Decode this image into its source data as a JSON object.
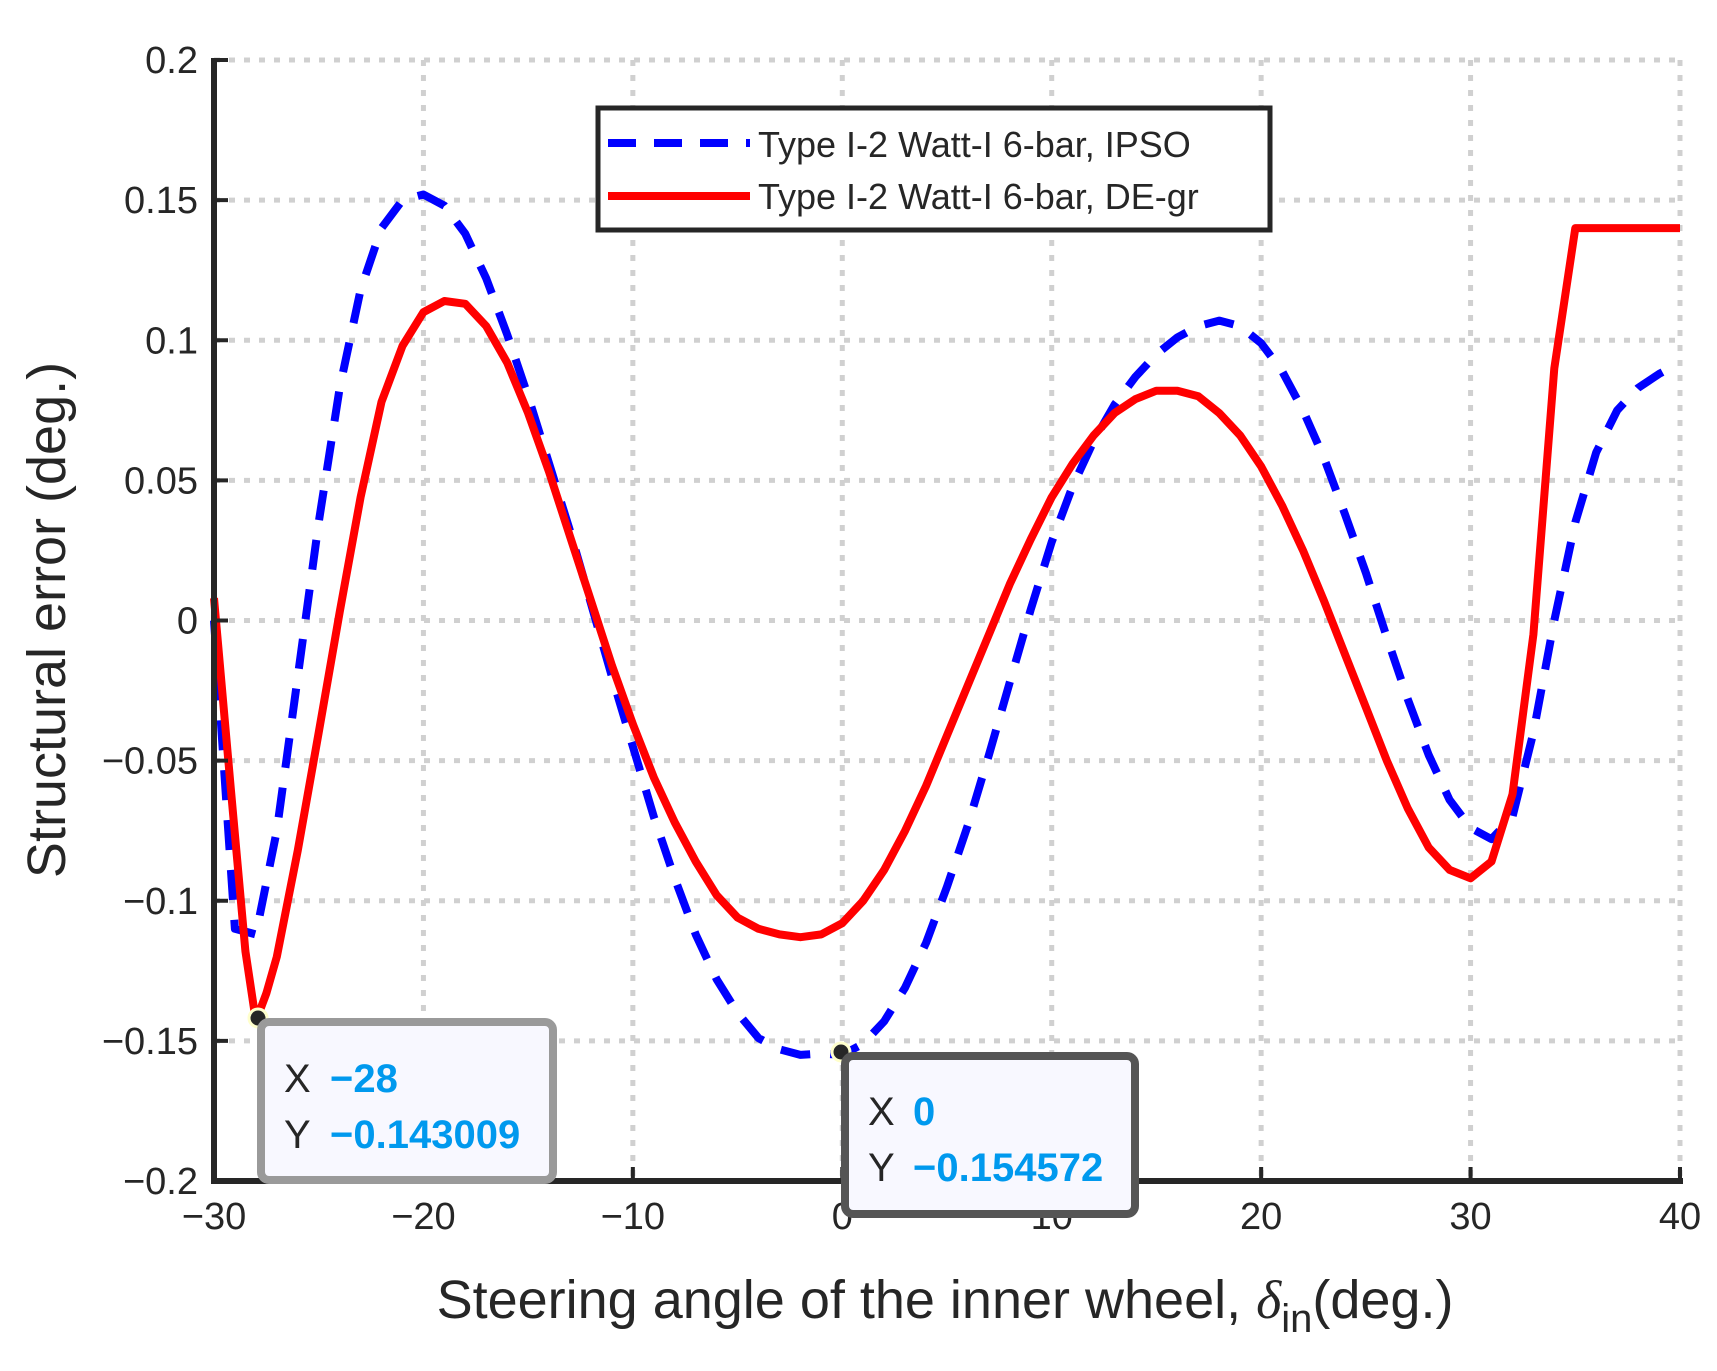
{
  "chart_data": {
    "type": "line",
    "title": "",
    "xlabel": "Steering angle of the inner wheel, ",
    "xlabel_symbol": "δ",
    "xlabel_subscript": "in",
    "xlabel_suffix": "(deg.)",
    "ylabel": "Structural error (deg.)",
    "xlim": [
      -30,
      40
    ],
    "ylim": [
      -0.2,
      0.2
    ],
    "xticks": [
      -30,
      -20,
      -10,
      0,
      10,
      20,
      30,
      40
    ],
    "yticks": [
      -0.2,
      -0.15,
      -0.1,
      -0.05,
      0,
      0.05,
      0.1,
      0.15,
      0.2
    ],
    "xtick_labels": [
      "−30",
      "−20",
      "−10",
      "0",
      "10",
      "20",
      "30",
      "40"
    ],
    "ytick_labels": [
      "−0.2",
      "−0.15",
      "−0.1",
      "−0.05",
      "0",
      "0.05",
      "0.1",
      "0.15",
      "0.2"
    ],
    "grid": true,
    "legend_position": "top-center",
    "series": [
      {
        "name": "Type I-2 Watt-I 6-bar, IPSO",
        "color": "#0000ff",
        "style": "dashed",
        "x": [
          -30,
          -29,
          -28,
          -27,
          -26,
          -25,
          -24,
          -23,
          -22,
          -21,
          -20,
          -19,
          -18,
          -17,
          -16,
          -15,
          -14,
          -13,
          -12,
          -11,
          -10,
          -9,
          -8,
          -7,
          -6,
          -5,
          -4,
          -3,
          -2,
          -1,
          0,
          1,
          2,
          3,
          4,
          5,
          6,
          7,
          8,
          9,
          10,
          11,
          12,
          13,
          14,
          15,
          16,
          17,
          18,
          19,
          20,
          21,
          22,
          23,
          24,
          25,
          26,
          27,
          28,
          29,
          30,
          31,
          32,
          33,
          34,
          35,
          36,
          37,
          38,
          39,
          40
        ],
        "y": [
          0.0,
          -0.11,
          -0.112,
          -0.075,
          -0.02,
          0.035,
          0.083,
          0.118,
          0.14,
          0.15,
          0.152,
          0.148,
          0.138,
          0.122,
          0.102,
          0.08,
          0.056,
          0.032,
          0.006,
          -0.02,
          -0.045,
          -0.07,
          -0.092,
          -0.112,
          -0.128,
          -0.14,
          -0.149,
          -0.153,
          -0.155,
          -0.1545,
          -0.155,
          -0.151,
          -0.143,
          -0.131,
          -0.115,
          -0.095,
          -0.073,
          -0.048,
          -0.022,
          0.004,
          0.028,
          0.048,
          0.064,
          0.077,
          0.087,
          0.095,
          0.101,
          0.105,
          0.107,
          0.105,
          0.099,
          0.089,
          0.075,
          0.058,
          0.038,
          0.017,
          -0.006,
          -0.028,
          -0.048,
          -0.064,
          -0.074,
          -0.078,
          -0.07,
          -0.04,
          0.0,
          0.035,
          0.06,
          0.075,
          0.083,
          0.088,
          0.092
        ]
      },
      {
        "name": "Type I-2 Watt-I 6-bar, DE-gr",
        "color": "#ff0000",
        "style": "solid",
        "x": [
          -30,
          -29.2,
          -28.5,
          -28,
          -27.5,
          -27,
          -26,
          -25,
          -24,
          -23,
          -22,
          -21,
          -20,
          -19,
          -18,
          -17,
          -16,
          -15,
          -14,
          -13,
          -12,
          -11,
          -10,
          -9,
          -8,
          -7,
          -6,
          -5,
          -4,
          -3,
          -2,
          -1,
          0,
          1,
          2,
          3,
          4,
          5,
          6,
          7,
          8,
          9,
          10,
          11,
          12,
          13,
          14,
          15,
          16,
          17,
          18,
          19,
          20,
          21,
          22,
          23,
          24,
          25,
          26,
          27,
          28,
          29,
          30,
          31,
          32,
          33,
          34,
          35,
          36,
          37,
          38,
          39,
          40
        ],
        "y": [
          0.008,
          -0.06,
          -0.118,
          -0.143,
          -0.133,
          -0.12,
          -0.082,
          -0.04,
          0.003,
          0.044,
          0.078,
          0.098,
          0.11,
          0.114,
          0.113,
          0.105,
          0.092,
          0.074,
          0.053,
          0.03,
          0.007,
          -0.016,
          -0.037,
          -0.056,
          -0.072,
          -0.086,
          -0.098,
          -0.106,
          -0.11,
          -0.112,
          -0.113,
          -0.112,
          -0.108,
          -0.1,
          -0.089,
          -0.075,
          -0.059,
          -0.041,
          -0.023,
          -0.005,
          0.013,
          0.029,
          0.044,
          0.056,
          0.066,
          0.074,
          0.079,
          0.082,
          0.082,
          0.08,
          0.074,
          0.066,
          0.055,
          0.041,
          0.025,
          0.007,
          -0.012,
          -0.031,
          -0.05,
          -0.067,
          -0.081,
          -0.089,
          -0.092,
          -0.086,
          -0.062,
          -0.005,
          0.09,
          0.14,
          0.14,
          0.14,
          0.14,
          0.14,
          0.14
        ]
      }
    ],
    "annotations": [
      {
        "x_label": "X",
        "y_label": "Y",
        "x_value": "−28",
        "y_value": "−0.143009",
        "point_x": -28,
        "point_y": -0.143009
      },
      {
        "x_label": "X",
        "y_label": "Y",
        "x_value": "0",
        "y_value": "−0.154572",
        "point_x": 0,
        "point_y": -0.154572
      }
    ]
  }
}
